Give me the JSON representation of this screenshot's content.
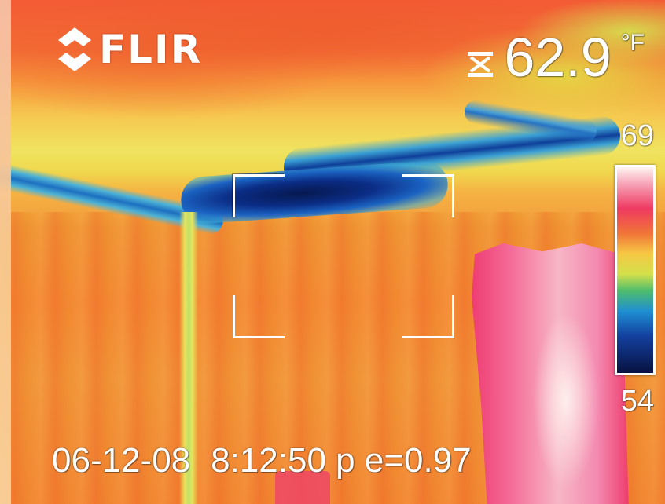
{
  "camera": {
    "brand": "FLIR"
  },
  "spot": {
    "temperature": "62.9",
    "unit": "°F"
  },
  "scale": {
    "max": "69",
    "min": "54"
  },
  "footer": {
    "date": "06-12-08",
    "time": "8:12:50 p",
    "emissivity": "e=0.97"
  },
  "colors": {
    "hud_text": "#ffffff",
    "palette_hot": "#fff5f0",
    "palette_mid": "#f6c844",
    "palette_cold": "#071240"
  },
  "icons": {
    "logo": "flir-logo-icon",
    "spot": "spot-meter-icon"
  }
}
